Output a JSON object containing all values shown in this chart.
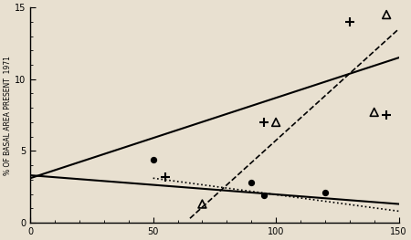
{
  "background_color": "#e8e0d0",
  "ylabel": "% OF BASAL AREA PRESENT  1971",
  "xlabel": "",
  "xlim": [
    0,
    150
  ],
  "ylim": [
    0,
    15
  ],
  "yticks": [
    0,
    5,
    10,
    15
  ],
  "xticks": [
    0,
    50,
    100,
    150
  ],
  "scatter_dots": {
    "x": [
      50,
      90,
      120,
      95
    ],
    "y": [
      4.4,
      2.8,
      2.1,
      1.9
    ]
  },
  "scatter_plus": {
    "x": [
      55,
      95,
      145
    ],
    "y": [
      3.2,
      7.0,
      7.5
    ]
  },
  "scatter_plus2": {
    "x": [
      130
    ],
    "y": [
      14.0
    ]
  },
  "scatter_triangle": {
    "x": [
      70,
      100,
      140
    ],
    "y": [
      1.3,
      7.0,
      7.7
    ]
  },
  "scatter_triangle2": {
    "x": [
      145
    ],
    "y": [
      14.5
    ]
  },
  "line1_x": [
    0,
    150
  ],
  "line1_y": [
    3.1,
    11.5
  ],
  "line2_x": [
    0,
    150
  ],
  "line2_y": [
    3.3,
    1.3
  ],
  "line3_x": [
    50,
    150
  ],
  "line3_y": [
    3.1,
    0.8
  ],
  "line4_x": [
    65,
    150
  ],
  "line4_y": [
    0.3,
    13.5
  ]
}
